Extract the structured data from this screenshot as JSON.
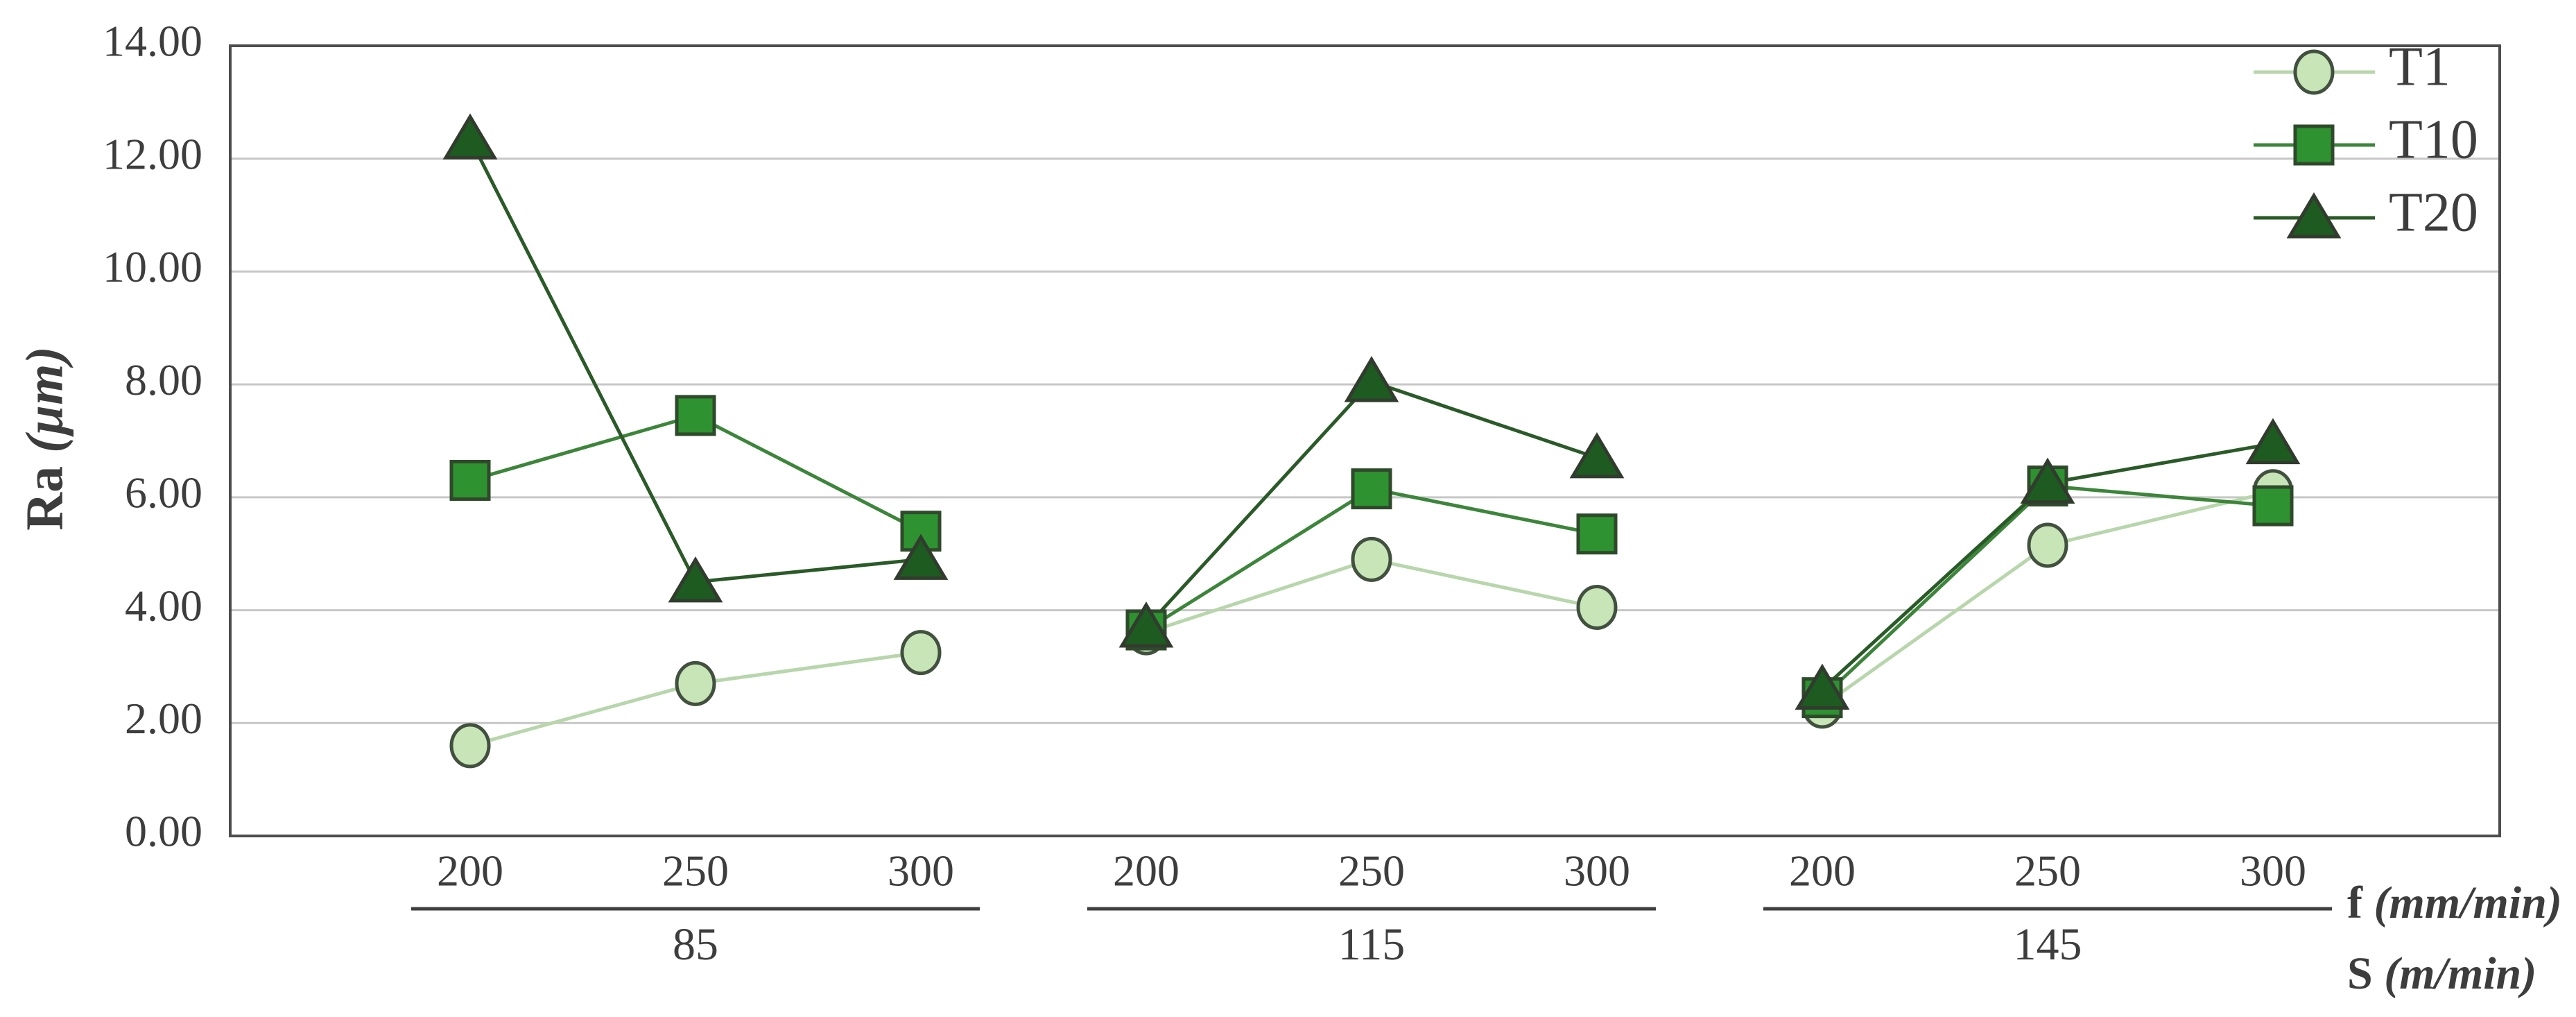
{
  "figure": {
    "ylabel_main": "Ra",
    "ylabel_unit": "(µm)",
    "xlabel1_main": "f",
    "xlabel1_unit": "(mm/min)",
    "xlabel2_main": "S",
    "xlabel2_unit": "(m/min)"
  },
  "chart_data": {
    "type": "line",
    "title": "",
    "ylabel": "Ra (µm)",
    "x_axis_label": "f (mm/min)",
    "group_axis_label": "S (m/min)",
    "ylim": [
      0,
      14
    ],
    "ytick_step": 2,
    "ytick_labels": [
      "0.00",
      "2.00",
      "4.00",
      "6.00",
      "8.00",
      "10.00",
      "12.00",
      "14.00"
    ],
    "grid": "horizontal",
    "legend_position": "top-right-inside",
    "groups": [
      {
        "label": "85",
        "categories": [
          "200",
          "250",
          "300"
        ]
      },
      {
        "label": "115",
        "categories": [
          "200",
          "250",
          "300"
        ]
      },
      {
        "label": "145",
        "categories": [
          "200",
          "250",
          "300"
        ]
      }
    ],
    "series": [
      {
        "name": "T1",
        "marker": "circle",
        "line_color": "#b8d6ab",
        "fill_color": "#c7e5b6",
        "stroke_color": "#41503f",
        "values": [
          1.6,
          2.7,
          3.25,
          3.6,
          4.9,
          4.05,
          2.3,
          5.15,
          6.1
        ]
      },
      {
        "name": "T10",
        "marker": "square",
        "line_color": "#3c853a",
        "fill_color": "#2e9231",
        "stroke_color": "#2f4a2b",
        "values": [
          6.3,
          7.45,
          5.4,
          3.65,
          6.15,
          5.35,
          2.45,
          6.2,
          5.85
        ]
      },
      {
        "name": "T20",
        "marker": "triangle",
        "line_color": "#2a5a28",
        "fill_color": "#1e5b21",
        "stroke_color": "#313c2e",
        "values": [
          12.35,
          4.5,
          4.9,
          3.7,
          8.05,
          6.7,
          2.6,
          6.25,
          6.95
        ]
      }
    ],
    "colors": {
      "grid": "#c7c7c7",
      "axis_border": "#4d4d4d",
      "group_underline": "#3f3f3f",
      "text": "#3d3d3d",
      "background": "#ffffff"
    }
  }
}
